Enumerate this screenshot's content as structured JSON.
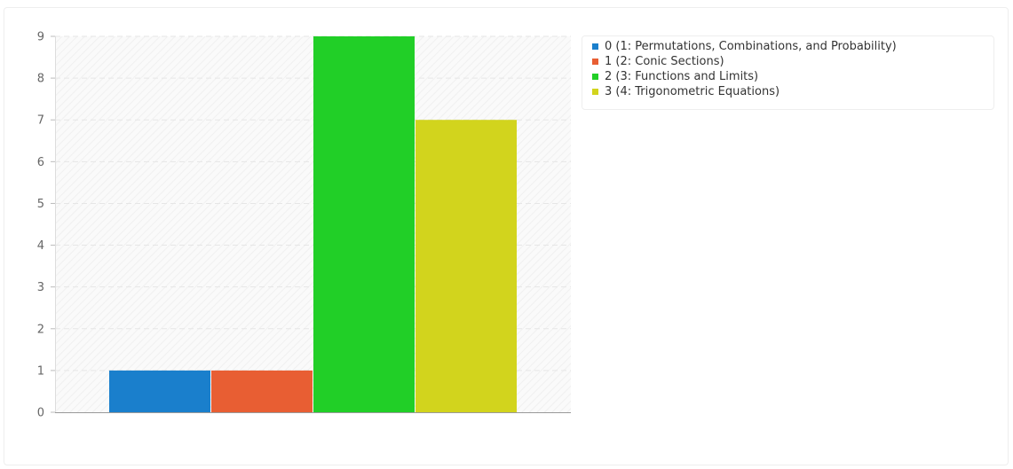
{
  "chart_data": {
    "type": "bar",
    "title": "",
    "xlabel": "",
    "ylabel": "",
    "ylim": [
      0,
      9
    ],
    "yticks": [
      0,
      1,
      2,
      3,
      4,
      5,
      6,
      7,
      8,
      9
    ],
    "grid": true,
    "legend_position": "top-right",
    "series": [
      {
        "name": "0 (1: Permutations, Combinations, and Probability)",
        "value": 1,
        "color": "#1a7fcc"
      },
      {
        "name": "1 (2: Conic Sections)",
        "value": 1,
        "color": "#e85e33"
      },
      {
        "name": "2 (3: Functions and Limits)",
        "value": 9,
        "color": "#21cf27"
      },
      {
        "name": "3 (4: Trigonometric Equations)",
        "value": 7,
        "color": "#d2d41d"
      }
    ]
  }
}
